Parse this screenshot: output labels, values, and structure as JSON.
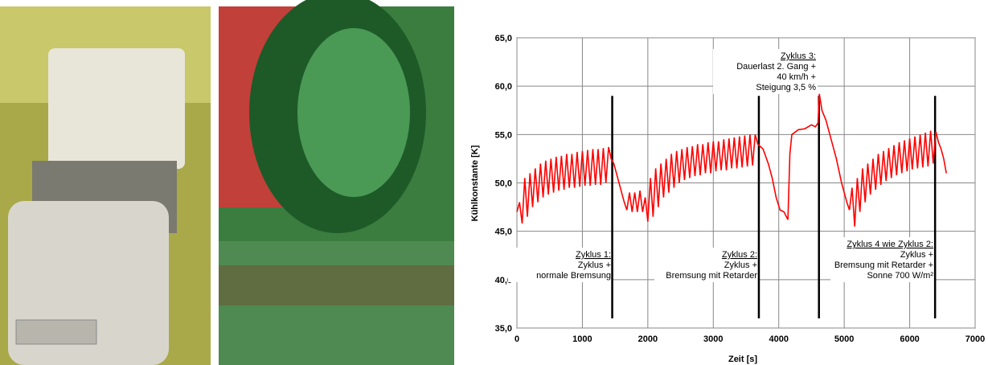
{
  "chart_data": {
    "type": "line",
    "x_label": "Zeit [s]",
    "y_label": "Kühlkonstante [K]",
    "xlim": [
      0,
      7000
    ],
    "xticks": [
      0,
      1000,
      2000,
      3000,
      4000,
      5000,
      6000,
      7000
    ],
    "ylim": [
      35,
      65
    ],
    "yticks": [
      {
        "value": 35,
        "label": "35,0"
      },
      {
        "value": 40,
        "label": "40,0"
      },
      {
        "value": 45,
        "label": "45,0"
      },
      {
        "value": 50,
        "label": "50,0"
      },
      {
        "value": 55,
        "label": "55,0"
      },
      {
        "value": 60,
        "label": "60,0"
      },
      {
        "value": 65,
        "label": "65,0"
      }
    ],
    "grid": true,
    "series": [
      {
        "color": "#ff0000",
        "x": [
          0,
          40,
          80,
          120,
          160,
          200,
          240,
          280,
          320,
          360,
          400,
          440,
          480,
          520,
          560,
          600,
          640,
          680,
          720,
          760,
          800,
          840,
          880,
          920,
          960,
          1000,
          1040,
          1080,
          1120,
          1160,
          1200,
          1240,
          1280,
          1320,
          1360,
          1400,
          1440,
          1480,
          1520,
          1560,
          1600,
          1640,
          1680,
          1720,
          1760,
          1800,
          1840,
          1880,
          1920,
          1960,
          2000,
          2040,
          2080,
          2120,
          2160,
          2200,
          2240,
          2280,
          2320,
          2360,
          2400,
          2440,
          2480,
          2520,
          2560,
          2600,
          2640,
          2680,
          2720,
          2760,
          2800,
          2840,
          2880,
          2920,
          2960,
          3000,
          3040,
          3080,
          3120,
          3160,
          3200,
          3240,
          3280,
          3320,
          3360,
          3400,
          3440,
          3480,
          3520,
          3560,
          3600,
          3640,
          3680,
          3760,
          3840,
          3900,
          3960,
          4020,
          4080,
          4140,
          4170,
          4200,
          4300,
          4400,
          4500,
          4560,
          4600,
          4620,
          4660,
          4720,
          4800,
          4880,
          4960,
          5040,
          5080,
          5120,
          5160,
          5200,
          5240,
          5280,
          5320,
          5360,
          5400,
          5440,
          5480,
          5520,
          5560,
          5600,
          5640,
          5680,
          5720,
          5760,
          5800,
          5840,
          5880,
          5920,
          5960,
          6000,
          6040,
          6080,
          6120,
          6160,
          6200,
          6240,
          6280,
          6320,
          6360,
          6400,
          6440,
          6480,
          6520,
          6560
        ],
        "values": [
          47,
          48,
          45.8,
          50.5,
          46.5,
          51,
          47.5,
          51.5,
          48,
          52,
          48.5,
          52.3,
          48.8,
          52.5,
          49,
          52.7,
          49.2,
          52.8,
          49.3,
          53,
          49.5,
          53,
          49.5,
          53.2,
          49.6,
          53.3,
          49.7,
          53.4,
          49.7,
          53.5,
          49.8,
          53.5,
          49.8,
          53.6,
          50,
          53.7,
          52.5,
          52,
          51,
          50,
          49,
          48,
          47.2,
          49,
          47,
          49,
          47,
          49.2,
          47,
          48.5,
          46,
          50.5,
          46.5,
          51.5,
          47.5,
          52,
          48.5,
          52.5,
          49,
          53,
          49.5,
          53.3,
          50,
          53.5,
          50.3,
          53.7,
          50.5,
          53.8,
          50.7,
          54,
          50.8,
          54,
          51,
          54.2,
          51,
          54.3,
          51.2,
          54.3,
          51.3,
          54.5,
          51.3,
          54.6,
          51.5,
          54.7,
          51.5,
          54.8,
          51.6,
          54.9,
          51.7,
          55,
          51.8,
          55,
          54,
          53.5,
          52,
          50.5,
          48.5,
          47.2,
          47,
          46.2,
          53,
          55,
          55.5,
          55.6,
          56,
          55.8,
          56.2,
          59.2,
          57.5,
          56.5,
          54.5,
          52.5,
          50,
          48,
          47.2,
          49.5,
          45.5,
          50.5,
          47,
          51.5,
          48,
          52,
          48.8,
          52.5,
          49.3,
          53,
          49.8,
          53.3,
          50.2,
          53.6,
          50.5,
          53.9,
          50.8,
          54.2,
          51,
          54.4,
          51.2,
          54.6,
          51.4,
          54.8,
          51.5,
          55,
          51.6,
          55.2,
          51.7,
          55.4,
          52,
          55.3,
          54.2,
          53.5,
          52.5,
          51
        ]
      }
    ],
    "phase_lines": {
      "x": [
        1456,
        3696,
        4614,
        6388
      ],
      "y_from": 36,
      "y_to": 59
    },
    "annotations": [
      {
        "lines": [
          "Zyklus 1:",
          "Zyklus +",
          "normale Bremsung"
        ]
      },
      {
        "lines": [
          "Zyklus 2:",
          "Zyklus +",
          "Bremsung mit Retarder"
        ]
      },
      {
        "lines": [
          "Zyklus 3:",
          "Dauerlast 2. Gang +",
          "40 km/h +",
          "Steigung 3,5 %"
        ]
      },
      {
        "lines": [
          "Zyklus 4 wie Zyklus 2:",
          "Zyklus +",
          "Bremsung mit Retarder +",
          "Sonne 700 W/m²"
        ]
      }
    ]
  }
}
